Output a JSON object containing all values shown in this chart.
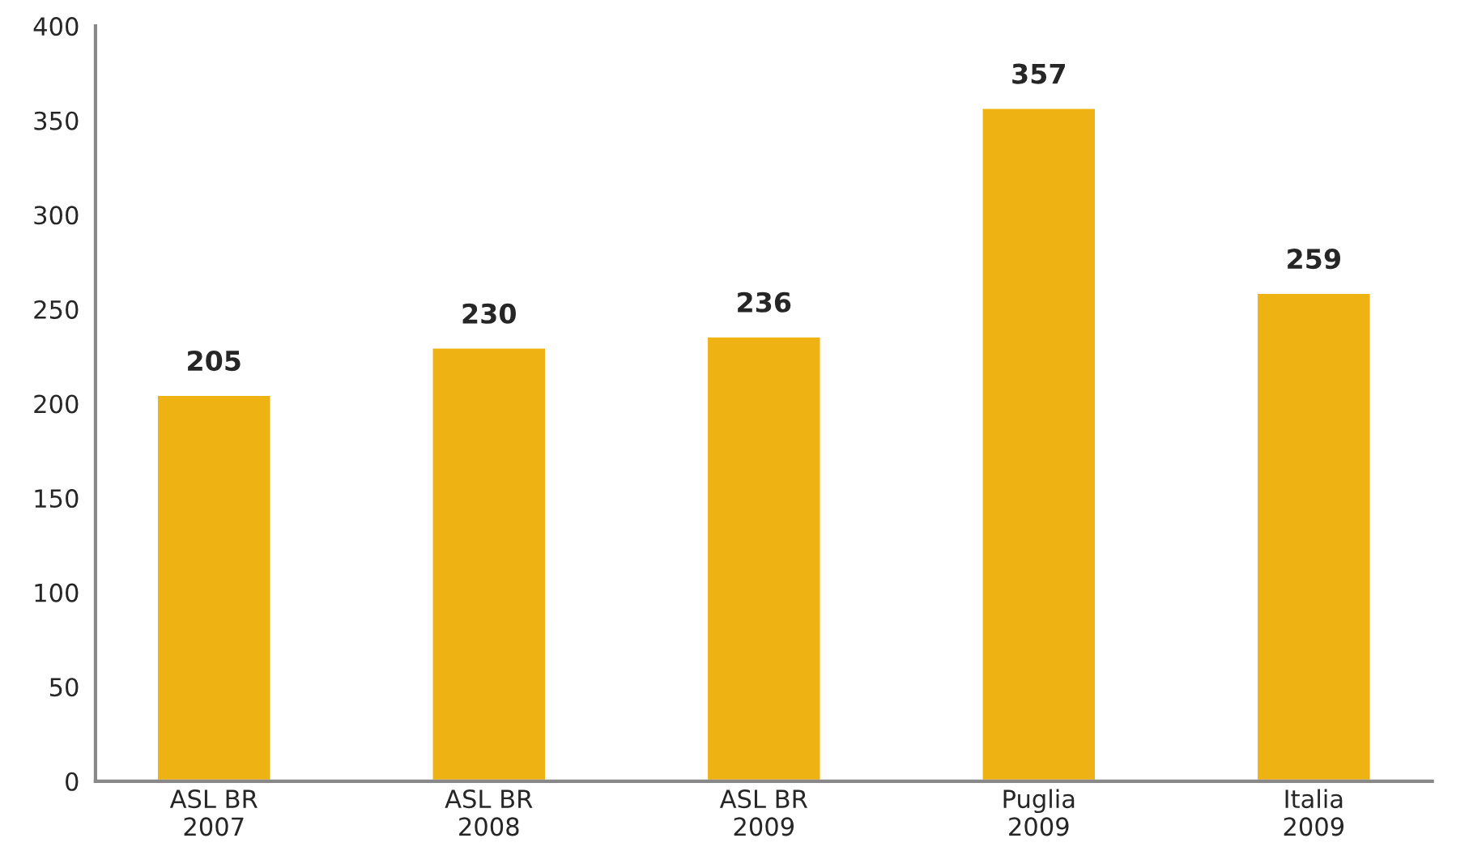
{
  "chart_data": {
    "type": "bar",
    "categories": [
      "ASL BR\n2007",
      "ASL BR\n2008",
      "ASL BR\n2009",
      "Puglia\n2009",
      "Italia\n2009"
    ],
    "values": [
      205,
      230,
      236,
      357,
      259
    ],
    "color": "#efb213",
    "ylim": [
      0,
      400
    ],
    "yticks": [
      0,
      50,
      100,
      150,
      200,
      250,
      300,
      350,
      400
    ],
    "data_labels": true,
    "grid": false,
    "legend": false
  }
}
